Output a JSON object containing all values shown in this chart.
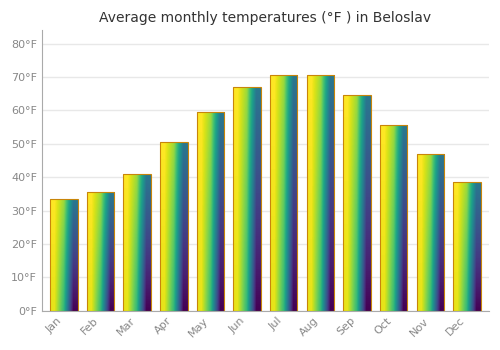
{
  "title": "Average monthly temperatures (°F ) in Beloslav",
  "months": [
    "Jan",
    "Feb",
    "Mar",
    "Apr",
    "May",
    "Jun",
    "Jul",
    "Aug",
    "Sep",
    "Oct",
    "Nov",
    "Dec"
  ],
  "values": [
    33.5,
    35.5,
    41.0,
    50.5,
    59.5,
    67.0,
    70.5,
    70.5,
    64.5,
    55.5,
    47.0,
    38.5
  ],
  "bar_color_bottom": "#F5A800",
  "bar_color_top": "#FFD966",
  "bar_edge_color": "#C8850A",
  "background_color": "#FFFFFF",
  "grid_color": "#E8E8E8",
  "ytick_labels": [
    "0°F",
    "10°F",
    "20°F",
    "30°F",
    "40°F",
    "50°F",
    "60°F",
    "70°F",
    "80°F"
  ],
  "ytick_values": [
    0,
    10,
    20,
    30,
    40,
    50,
    60,
    70,
    80
  ],
  "ylim": [
    0,
    84
  ],
  "title_fontsize": 10,
  "tick_fontsize": 8,
  "tick_color": "#888888",
  "bar_width": 0.75
}
